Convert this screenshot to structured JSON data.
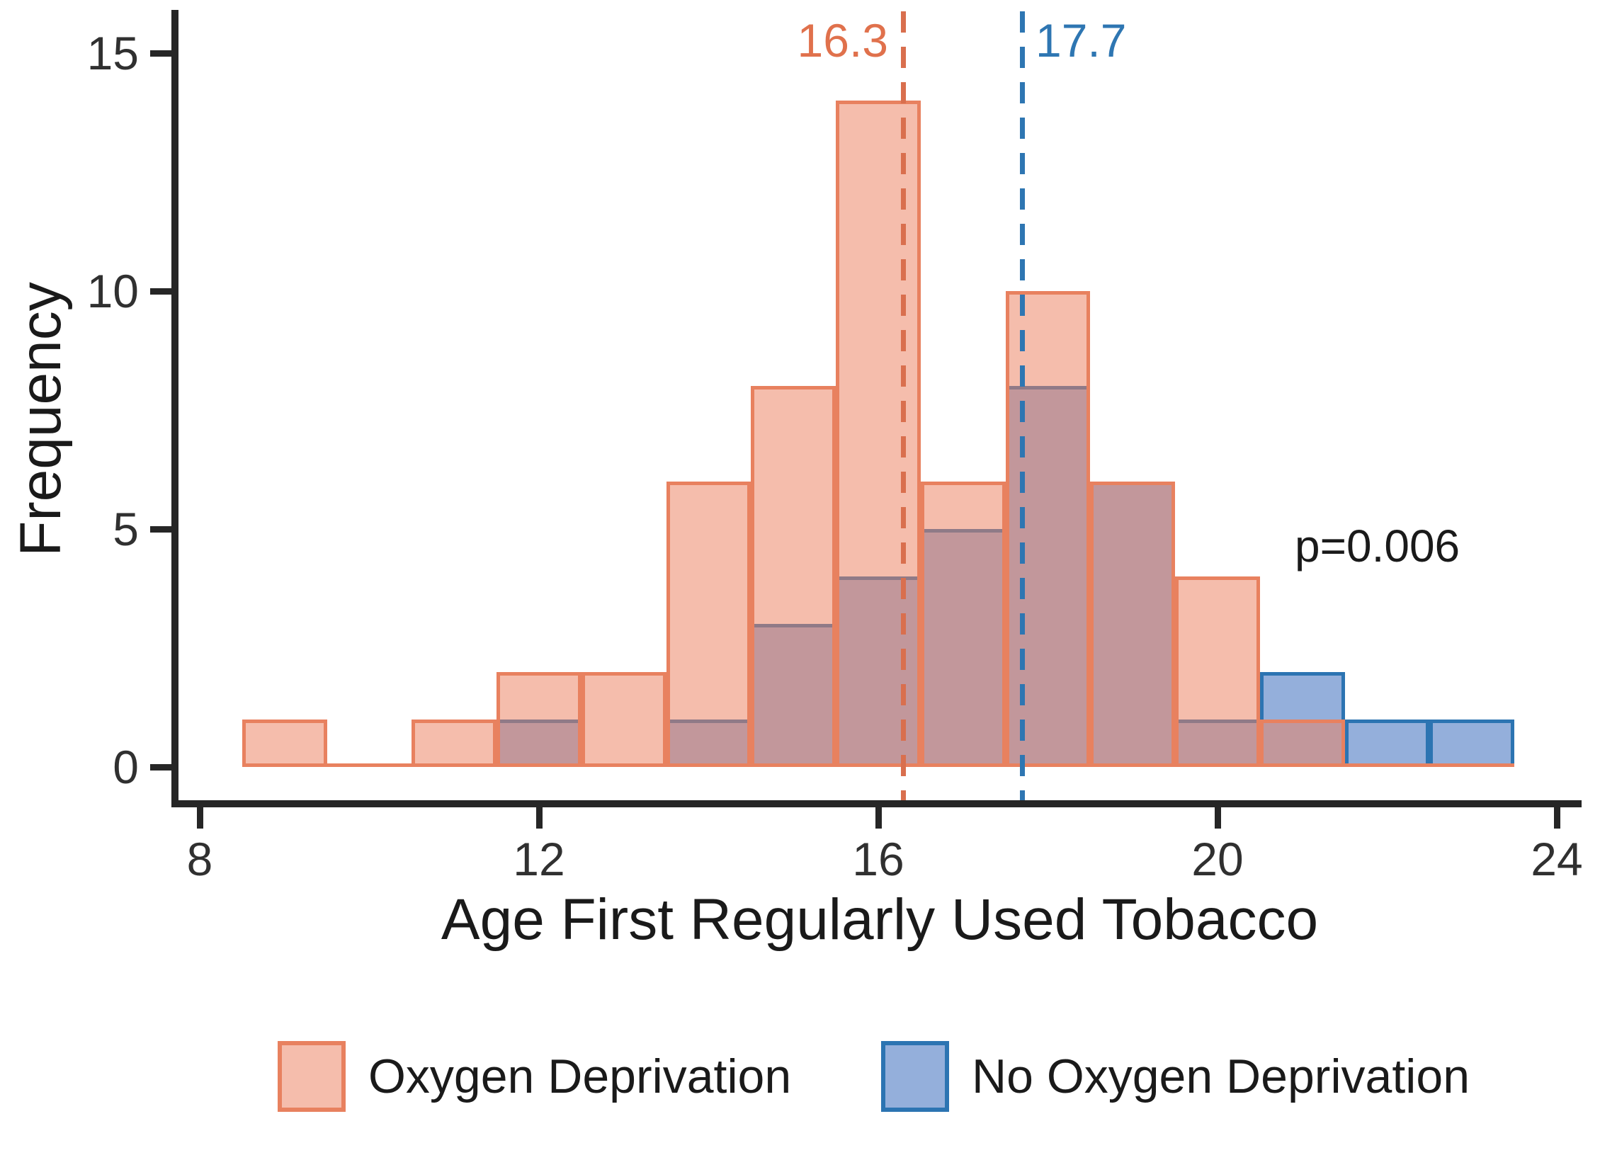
{
  "figure": {
    "p_annotation": "p=0.006"
  },
  "axes": {
    "x": {
      "title": "Age First Regularly Used Tobacco",
      "ticks": [
        8,
        12,
        16,
        20,
        24
      ]
    },
    "y": {
      "title": "Frequency",
      "ticks": [
        0,
        5,
        10,
        15
      ]
    }
  },
  "legend": {
    "orange_label": "Oxygen Deprivation",
    "blue_label": "No Oxygen Deprivation"
  },
  "colors": {
    "orange_border": "#E8815F",
    "orange_fill": "rgba(236,128,96,0.52)",
    "blue_border": "#2C74B2",
    "blue_fill": "rgba(60,110,190,0.55)",
    "orange_dash": "#D96F4E",
    "blue_dash": "#2E76B2",
    "axis": "#262626",
    "text": "#1a1a1a"
  },
  "chart_data": {
    "type": "bar",
    "subtype": "overlaid-histogram",
    "title": "",
    "xlabel": "Age First Regularly Used Tobacco",
    "ylabel": "Frequency",
    "xlim": [
      7.7,
      24.5
    ],
    "ylim": [
      0,
      15.6
    ],
    "grid": false,
    "legend_position": "bottom",
    "bin_width": 1,
    "bin_centers": [
      9,
      10,
      11,
      12,
      13,
      14,
      15,
      16,
      17,
      18,
      19,
      20,
      21,
      22,
      23
    ],
    "series": [
      {
        "name": "Oxygen Deprivation",
        "css": "orange",
        "mean": 16.3,
        "mean_label": "16.3",
        "counts": [
          1,
          0,
          1,
          2,
          2,
          6,
          8,
          14,
          6,
          10,
          6,
          4,
          1,
          0,
          0
        ]
      },
      {
        "name": "No Oxygen Deprivation",
        "css": "blue",
        "mean": 17.7,
        "mean_label": "17.7",
        "counts": [
          0,
          0,
          0,
          1,
          0,
          1,
          3,
          4,
          5,
          8,
          6,
          1,
          2,
          1,
          1
        ]
      }
    ],
    "annotations": [
      {
        "text": "p=0.006",
        "x": 21.3,
        "y": 5.2
      }
    ]
  }
}
